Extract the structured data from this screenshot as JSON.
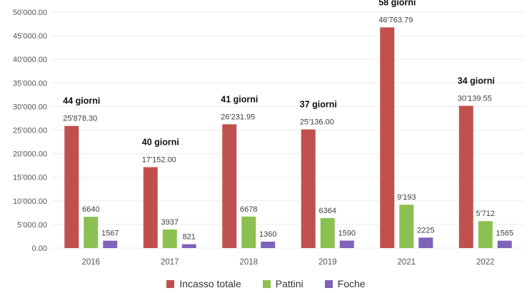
{
  "chart_data": {
    "type": "bar",
    "categories": [
      "2016",
      "2017",
      "2018",
      "2019",
      "2021",
      "2022"
    ],
    "ylim": [
      0,
      50000
    ],
    "yticks": [
      "0.00",
      "5'000.00",
      "10'000.00",
      "15'000.00",
      "20'000.00",
      "25'000.00",
      "30'000.00",
      "35'000.00",
      "40'000.00",
      "45'000.00",
      "50'000.00"
    ],
    "grid": true,
    "legend_position": "bottom",
    "series": [
      {
        "name": "Incasso totale",
        "color": "#c0504d",
        "values": [
          25878.3,
          17152.0,
          26231.95,
          25136.0,
          46763.79,
          30139.55
        ],
        "labels": [
          "25'878.30",
          "17'152.00",
          "26'231.95",
          "25'136.00",
          "46'763.79",
          "30'139.55"
        ]
      },
      {
        "name": "Pattini",
        "color": "#8cc152",
        "values": [
          6640,
          3937,
          6678,
          6364,
          9193,
          5712
        ],
        "labels": [
          "6640",
          "3937",
          "6678",
          "6364",
          "9'193",
          "5'712"
        ]
      },
      {
        "name": "Foche",
        "color": "#7e63b8",
        "values": [
          1567,
          821,
          1360,
          1590,
          2225,
          1565
        ],
        "labels": [
          "1567",
          "821",
          "1360",
          "1590",
          "2225",
          "1565"
        ]
      }
    ],
    "annotations": [
      "44 giorni",
      "40 giorni",
      "41 giorni",
      "37 giorni",
      "58 giorni",
      "34 giorni"
    ]
  }
}
